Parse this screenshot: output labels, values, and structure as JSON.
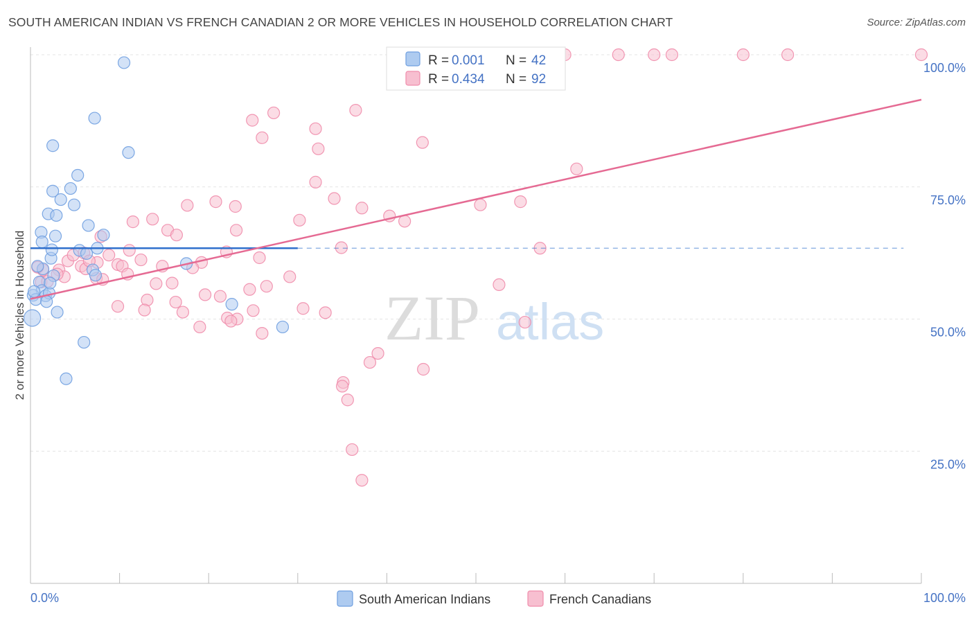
{
  "title": "SOUTH AMERICAN INDIAN VS FRENCH CANADIAN 2 OR MORE VEHICLES IN HOUSEHOLD CORRELATION CHART",
  "source": "Source: ZipAtlas.com",
  "watermark": {
    "zip": "ZIP",
    "atlas": "atlas"
  },
  "legend": {
    "row1": {
      "r_label": "R = ",
      "r_value": "0.001",
      "n_label": "N = ",
      "n_value": "42"
    },
    "row2": {
      "r_label": "R = ",
      "r_value": "0.434",
      "n_label": "N = ",
      "n_value": "92"
    }
  },
  "chart_data": {
    "type": "scatter",
    "title": "SOUTH AMERICAN INDIAN VS FRENCH CANADIAN 2 OR MORE VEHICLES IN HOUSEHOLD CORRELATION CHART",
    "xlabel": "",
    "ylabel": "2 or more Vehicles in Household",
    "xlim": [
      0,
      100
    ],
    "ylim": [
      0,
      100
    ],
    "x_tick_labels": [
      "0.0%",
      "100.0%"
    ],
    "y_tick_labels": [
      "100.0%",
      "75.0%",
      "50.0%",
      "25.0%"
    ],
    "y_tick_values": [
      100,
      75,
      50,
      25
    ],
    "series": [
      {
        "name": "South American Indians",
        "color": "#6f9fe0",
        "fill": "#aecbf0",
        "trend_color": "#2f6fcc",
        "trend": {
          "x0": 0,
          "y0": 63.4,
          "x1": 30,
          "y1": 63.4,
          "dash_to": 98
        },
        "points": [
          [
            10.5,
            98.5
          ],
          [
            7.2,
            88
          ],
          [
            11,
            81.5
          ],
          [
            2.5,
            82.8
          ],
          [
            5.3,
            77.2
          ],
          [
            2.5,
            74.2
          ],
          [
            4.5,
            74.7
          ],
          [
            3.4,
            72.6
          ],
          [
            4.9,
            71.6
          ],
          [
            2.0,
            69.9
          ],
          [
            2.9,
            69.6
          ],
          [
            6.5,
            67.7
          ],
          [
            1.2,
            66.4
          ],
          [
            1.3,
            64.6
          ],
          [
            2.8,
            65.7
          ],
          [
            8.2,
            65.9
          ],
          [
            5.5,
            63.0
          ],
          [
            6.3,
            62.4
          ],
          [
            7.5,
            63.4
          ],
          [
            2.3,
            61.5
          ],
          [
            17.5,
            60.5
          ],
          [
            1.4,
            59.5
          ],
          [
            7.0,
            59.3
          ],
          [
            2.6,
            58.2
          ],
          [
            7.3,
            58.3
          ],
          [
            1.0,
            57.0
          ],
          [
            1.3,
            55.4
          ],
          [
            1.7,
            54.4
          ],
          [
            2.1,
            54.9
          ],
          [
            0.3,
            54.5
          ],
          [
            0.6,
            53.7
          ],
          [
            1.8,
            53.3
          ],
          [
            22.6,
            52.8
          ],
          [
            3.0,
            51.3
          ],
          [
            0.2,
            50.2
          ],
          [
            28.3,
            48.5
          ],
          [
            6.0,
            45.6
          ],
          [
            4.0,
            38.7
          ],
          [
            2.2,
            56.8
          ],
          [
            0.8,
            60.0
          ],
          [
            0.4,
            55.2
          ],
          [
            2.4,
            63.1
          ]
        ]
      },
      {
        "name": "French Canadians",
        "color": "#f08cab",
        "fill": "#f7bfd0",
        "trend_color": "#e56a93",
        "trend": {
          "x0": 0,
          "y0": 53.8,
          "x1": 100,
          "y1": 91.5
        },
        "points": [
          [
            50,
            100
          ],
          [
            60,
            100
          ],
          [
            66,
            100
          ],
          [
            70,
            100
          ],
          [
            72,
            100
          ],
          [
            80,
            100
          ],
          [
            85,
            100
          ],
          [
            100,
            100
          ],
          [
            36.5,
            89.5
          ],
          [
            27.3,
            89
          ],
          [
            24.9,
            87.6
          ],
          [
            32.0,
            86
          ],
          [
            26,
            84.3
          ],
          [
            44,
            83.4
          ],
          [
            32.3,
            82.2
          ],
          [
            61.3,
            78.4
          ],
          [
            32.0,
            75.9
          ],
          [
            34.1,
            72.8
          ],
          [
            17.6,
            71.5
          ],
          [
            20.8,
            72.2
          ],
          [
            23.0,
            71.3
          ],
          [
            50.5,
            71.6
          ],
          [
            55.0,
            72.2
          ],
          [
            37.2,
            71.0
          ],
          [
            40.3,
            69.5
          ],
          [
            30.2,
            68.7
          ],
          [
            42.0,
            68.5
          ],
          [
            11.5,
            68.4
          ],
          [
            13.7,
            68.9
          ],
          [
            15.4,
            66.8
          ],
          [
            16.4,
            65.9
          ],
          [
            23.1,
            66.8
          ],
          [
            7.9,
            65.6
          ],
          [
            34.9,
            63.5
          ],
          [
            11.1,
            63.0
          ],
          [
            22.0,
            62.7
          ],
          [
            57.2,
            63.4
          ],
          [
            6.0,
            62.5
          ],
          [
            8.8,
            62.1
          ],
          [
            12.4,
            61.2
          ],
          [
            25.7,
            61.6
          ],
          [
            4.2,
            61.0
          ],
          [
            19.2,
            60.7
          ],
          [
            5.7,
            60.0
          ],
          [
            7.5,
            60.7
          ],
          [
            9.8,
            60.3
          ],
          [
            10.3,
            60.0
          ],
          [
            14.8,
            60.0
          ],
          [
            18.2,
            59.7
          ],
          [
            6.2,
            59.5
          ],
          [
            3.2,
            59.3
          ],
          [
            10.9,
            58.5
          ],
          [
            1.4,
            59.3
          ],
          [
            3.8,
            58.0
          ],
          [
            7.4,
            57.7
          ],
          [
            8.1,
            57.5
          ],
          [
            29.1,
            58.0
          ],
          [
            1.2,
            57.0
          ],
          [
            14.1,
            56.7
          ],
          [
            15.9,
            56.8
          ],
          [
            24.6,
            55.6
          ],
          [
            26.5,
            56.2
          ],
          [
            52.6,
            56.5
          ],
          [
            19.6,
            54.6
          ],
          [
            21.3,
            54.3
          ],
          [
            13.1,
            53.6
          ],
          [
            16.3,
            53.2
          ],
          [
            9.8,
            52.4
          ],
          [
            12.8,
            51.7
          ],
          [
            25.0,
            51.6
          ],
          [
            22.1,
            50.2
          ],
          [
            30.6,
            52.0
          ],
          [
            17.1,
            51.3
          ],
          [
            33.1,
            51.2
          ],
          [
            23.2,
            50.0
          ],
          [
            22.5,
            49.6
          ],
          [
            55.5,
            49.4
          ],
          [
            19.0,
            48.5
          ],
          [
            26.0,
            47.3
          ],
          [
            39.0,
            43.5
          ],
          [
            38.1,
            41.8
          ],
          [
            44.1,
            40.5
          ],
          [
            35.1,
            38.0
          ],
          [
            35.0,
            37.3
          ],
          [
            35.6,
            34.7
          ],
          [
            36.1,
            25.3
          ],
          [
            37.2,
            19.5
          ],
          [
            3.0,
            58.5
          ],
          [
            0.8,
            59.8
          ],
          [
            1.9,
            57.1
          ],
          [
            6.6,
            61.0
          ],
          [
            4.8,
            62.1
          ]
        ]
      }
    ],
    "grid": true,
    "legend_position": "top-center"
  }
}
